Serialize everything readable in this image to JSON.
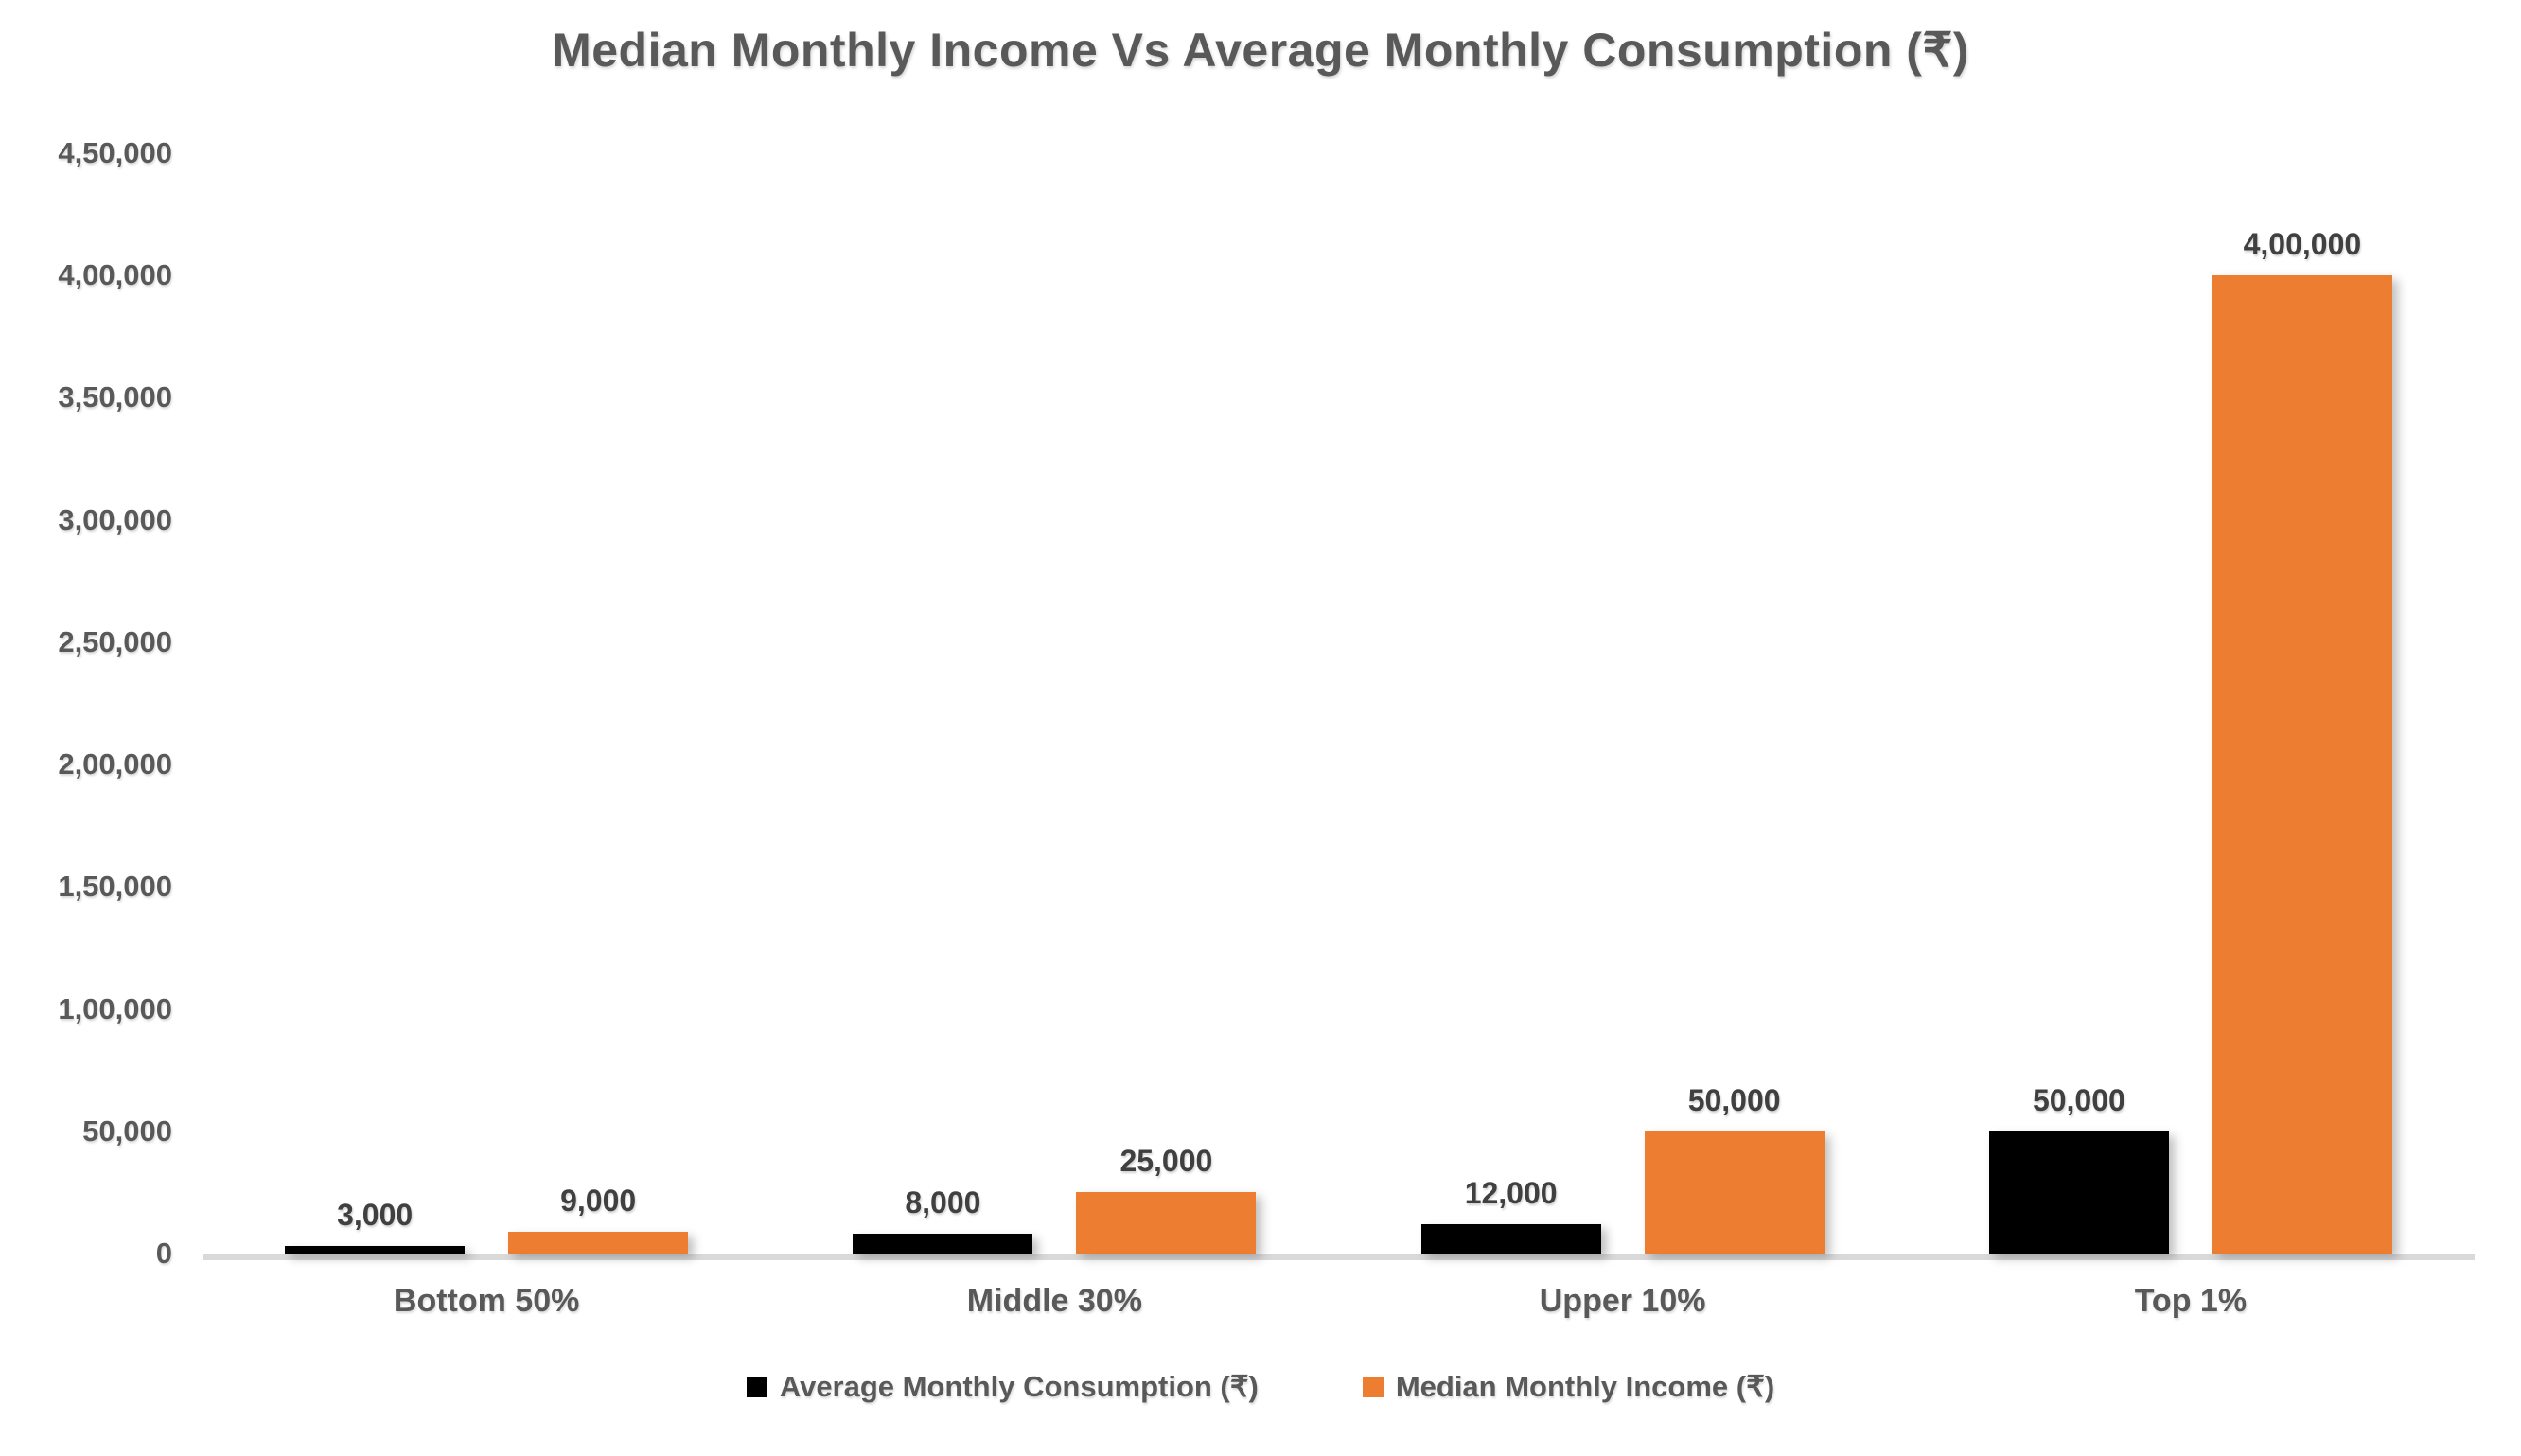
{
  "chart_data": {
    "type": "bar",
    "title": "Median Monthly Income Vs Average Monthly Consumption (₹)",
    "categories": [
      "Bottom 50%",
      "Middle 30%",
      "Upper 10%",
      "Top 1%"
    ],
    "series": [
      {
        "key": "average-monthly-consumption",
        "name": "Average Monthly Consumption (₹)",
        "color": "#000000",
        "values": [
          3000,
          8000,
          12000,
          50000
        ],
        "labels": [
          "3,000",
          "8,000",
          "12,000",
          "50,000"
        ]
      },
      {
        "key": "median-monthly-income",
        "name": "Median Monthly Income (₹)",
        "color": "#ED7D31",
        "values": [
          9000,
          25000,
          50000,
          400000
        ],
        "labels": [
          "9,000",
          "25,000",
          "50,000",
          "4,00,000"
        ]
      }
    ],
    "y_axis": {
      "min": 0,
      "max": 450000,
      "step": 50000,
      "tick_labels": [
        "0",
        "50,000",
        "1,00,000",
        "1,50,000",
        "2,00,000",
        "2,50,000",
        "3,00,000",
        "3,50,000",
        "4,00,000",
        "4,50,000"
      ]
    },
    "grid": false,
    "legend_position": "bottom",
    "colors": {
      "title_text": "#595959",
      "axis_text": "#595959",
      "data_label_text": "#404040",
      "axis_line": "#D9D9D9"
    }
  }
}
